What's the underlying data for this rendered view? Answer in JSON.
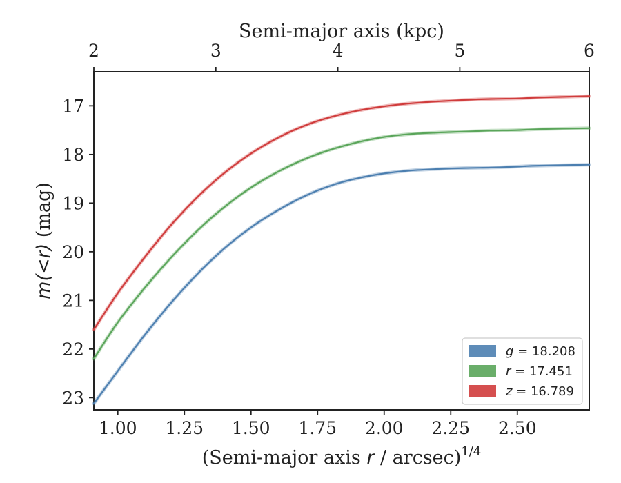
{
  "chart_data": {
    "type": "line",
    "xlabel_prefix": "(Semi-major axis ",
    "xlabel_var": "r",
    "xlabel_suffix": " / arcsec)",
    "xlabel_exp": "1/4",
    "ylabel_prefix": "m(<r)",
    "ylabel_suffix": " (mag)",
    "top_xlabel": "Semi-major axis (kpc)",
    "xlim": [
      0.91,
      2.77
    ],
    "ylim": [
      23.25,
      16.3
    ],
    "y_inverted": true,
    "x_ticks": [
      "1.00",
      "1.25",
      "1.50",
      "1.75",
      "2.00",
      "2.25",
      "2.50"
    ],
    "x_tick_values": [
      1.0,
      1.25,
      1.5,
      1.75,
      2.0,
      2.25,
      2.5
    ],
    "y_ticks": [
      "17",
      "18",
      "19",
      "20",
      "21",
      "22",
      "23"
    ],
    "y_tick_values": [
      17,
      18,
      19,
      20,
      21,
      22,
      23
    ],
    "top_ticks": [
      "2",
      "3",
      "4",
      "5",
      "6"
    ],
    "top_tick_positions": [
      0.91,
      1.368,
      1.826,
      2.284,
      2.77
    ],
    "grid": false,
    "legend_position": "bottom-right",
    "series": [
      {
        "band": "g",
        "value": "18.208",
        "color": "#4c7fb0",
        "x": [
          0.91,
          1.0,
          1.1,
          1.2,
          1.3,
          1.4,
          1.5,
          1.6,
          1.7,
          1.8,
          1.9,
          2.0,
          2.1,
          2.2,
          2.3,
          2.4,
          2.5,
          2.58,
          2.77
        ],
        "y": [
          23.12,
          22.45,
          21.72,
          21.05,
          20.45,
          19.93,
          19.5,
          19.15,
          18.86,
          18.64,
          18.49,
          18.39,
          18.33,
          18.3,
          18.28,
          18.27,
          18.25,
          18.23,
          18.21
        ]
      },
      {
        "band": "r",
        "value": "17.451",
        "color": "#5aa55a",
        "x": [
          0.91,
          1.0,
          1.1,
          1.2,
          1.3,
          1.4,
          1.5,
          1.6,
          1.7,
          1.8,
          1.9,
          2.0,
          2.1,
          2.2,
          2.3,
          2.4,
          2.5,
          2.58,
          2.77
        ],
        "y": [
          22.2,
          21.45,
          20.75,
          20.12,
          19.56,
          19.08,
          18.68,
          18.36,
          18.1,
          17.9,
          17.75,
          17.64,
          17.58,
          17.55,
          17.53,
          17.51,
          17.5,
          17.48,
          17.46
        ]
      },
      {
        "band": "z",
        "value": "16.789",
        "color": "#d03c3c",
        "x": [
          0.91,
          1.0,
          1.1,
          1.2,
          1.3,
          1.4,
          1.5,
          1.6,
          1.7,
          1.8,
          1.9,
          2.0,
          2.1,
          2.2,
          2.3,
          2.4,
          2.5,
          2.58,
          2.77
        ],
        "y": [
          21.6,
          20.85,
          20.12,
          19.45,
          18.87,
          18.38,
          17.98,
          17.66,
          17.41,
          17.23,
          17.1,
          17.01,
          16.95,
          16.91,
          16.88,
          16.86,
          16.85,
          16.83,
          16.8
        ]
      }
    ],
    "legend": [
      {
        "var": "g",
        "text": " = 18.208",
        "color": "#4c7fb0"
      },
      {
        "var": "r",
        "text": " = 17.451",
        "color": "#5aa55a"
      },
      {
        "var": "z",
        "text": " = 16.789",
        "color": "#d03c3c"
      }
    ]
  }
}
